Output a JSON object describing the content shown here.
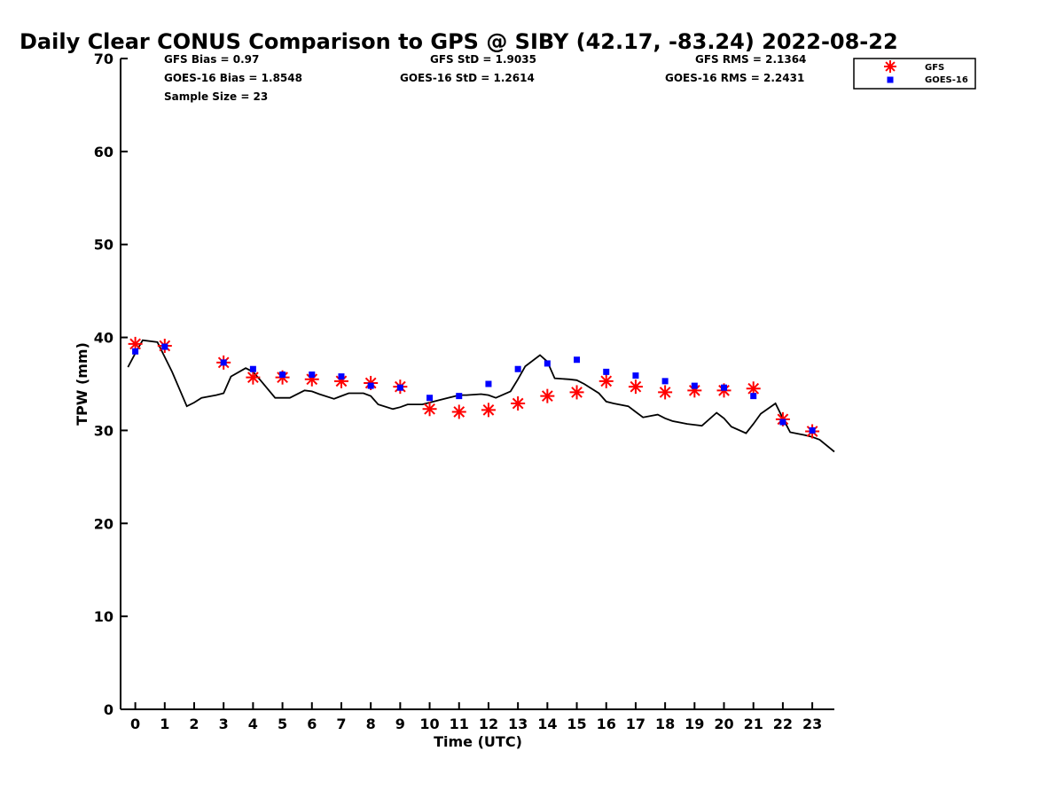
{
  "chart_data": {
    "type": "scatter",
    "title": "Daily Clear CONUS Comparison to GPS @ SIBY (42.17, -83.24) 2022-08-22",
    "xlabel": "Time (UTC)",
    "ylabel": "TPW (mm)",
    "xlim": [
      -0.5,
      23.75
    ],
    "ylim": [
      0,
      70
    ],
    "xticks": [
      0,
      1,
      2,
      3,
      4,
      5,
      6,
      7,
      8,
      9,
      10,
      11,
      12,
      13,
      14,
      15,
      16,
      17,
      18,
      19,
      20,
      21,
      22,
      23
    ],
    "yticks": [
      0,
      10,
      20,
      30,
      40,
      50,
      60,
      70
    ],
    "grid": false,
    "legend_position": "top-right",
    "stats": {
      "gfs_bias": "GFS Bias = 0.97",
      "goes_bias": "GOES-16 Bias = 1.8548",
      "sample_size": "Sample Size = 23",
      "gfs_std": "GFS StD = 1.9035",
      "goes_std": "GOES-16 StD = 1.2614",
      "gfs_rms": "GFS RMS = 2.1364",
      "goes_rms": "GOES-16 RMS = 2.2431"
    },
    "series": [
      {
        "name": "GFS",
        "marker": "asterisk",
        "color": "#ff0000",
        "x": [
          0,
          1,
          3,
          4,
          5,
          6,
          7,
          8,
          9,
          10,
          11,
          12,
          13,
          14,
          15,
          16,
          17,
          18,
          19,
          20,
          21,
          22,
          23
        ],
        "y": [
          39.3,
          39.1,
          37.3,
          35.7,
          35.7,
          35.5,
          35.3,
          35.1,
          34.7,
          32.3,
          32.0,
          32.2,
          32.9,
          33.7,
          34.1,
          35.3,
          34.7,
          34.1,
          34.3,
          34.3,
          34.5,
          31.2,
          29.9
        ]
      },
      {
        "name": "GOES-16",
        "marker": "square",
        "color": "#0000ff",
        "x": [
          0,
          1,
          3,
          4,
          5,
          6,
          7,
          8,
          9,
          10,
          11,
          12,
          13,
          14,
          15,
          16,
          17,
          18,
          19,
          20,
          21,
          22,
          23
        ],
        "y": [
          38.5,
          39.0,
          37.3,
          36.6,
          36.0,
          36.0,
          35.8,
          34.8,
          34.6,
          33.5,
          33.7,
          35.0,
          36.6,
          37.2,
          37.6,
          36.3,
          35.9,
          35.3,
          34.8,
          34.6,
          33.7,
          30.9,
          30.0
        ]
      },
      {
        "marker": "line",
        "color": "#000000",
        "x": [
          -0.25,
          0,
          0.25,
          0.75,
          1,
          1.25,
          1.75,
          2,
          2.25,
          2.75,
          3,
          3.25,
          3.75,
          4,
          4.25,
          4.75,
          5,
          5.25,
          5.75,
          6,
          6.25,
          6.75,
          7,
          7.25,
          7.75,
          8,
          8.25,
          8.75,
          9,
          9.25,
          9.75,
          10,
          10.25,
          10.75,
          11,
          11.25,
          11.75,
          12,
          12.25,
          12.75,
          13,
          13.25,
          13.75,
          14,
          14.25,
          14.75,
          15,
          15.25,
          15.75,
          16,
          16.25,
          16.75,
          17,
          17.25,
          17.75,
          18,
          18.25,
          18.75,
          19,
          19.25,
          19.75,
          20,
          20.25,
          20.75,
          21,
          21.25,
          21.75,
          22,
          22.25,
          22.75,
          23,
          23.25,
          23.75
        ],
        "y": [
          36.8,
          38.3,
          39.7,
          39.5,
          37.9,
          36.3,
          32.6,
          33.0,
          33.5,
          33.8,
          34.0,
          35.8,
          36.7,
          36.3,
          35.4,
          33.5,
          33.5,
          33.5,
          34.3,
          34.2,
          33.9,
          33.4,
          33.7,
          34.0,
          34.0,
          33.7,
          32.8,
          32.3,
          32.5,
          32.8,
          32.8,
          33.0,
          33.2,
          33.6,
          33.8,
          33.8,
          33.9,
          33.8,
          33.5,
          34.2,
          35.5,
          36.9,
          38.1,
          37.4,
          35.6,
          35.5,
          35.4,
          35.0,
          34.0,
          33.1,
          32.9,
          32.6,
          32.0,
          31.4,
          31.7,
          31.3,
          31.0,
          30.7,
          30.6,
          30.5,
          31.9,
          31.3,
          30.4,
          29.7,
          30.7,
          31.8,
          32.9,
          31.3,
          29.8,
          29.5,
          29.3,
          29.0,
          27.7
        ]
      }
    ]
  }
}
